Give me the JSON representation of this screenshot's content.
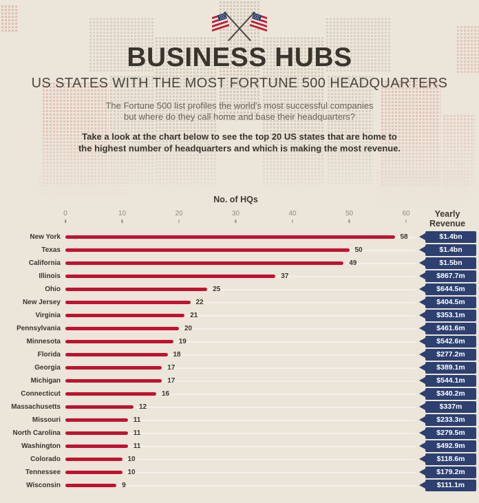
{
  "header": {
    "title": "BUSINESS HUBS",
    "subtitle": "US STATES WITH THE MOST FORTUNE 500 HEADQUARTERS",
    "description": "The Fortune 500 list profiles the world's most successful companies\nbut where do they call home and base their headquarters?",
    "cta": "Take a look at the chart below to see the top 20 US states that are home to\nthe highest number of headquarters and which is making the most revenue.",
    "flags_icon": "crossed-us-flags-icon"
  },
  "chart_data": {
    "type": "bar",
    "orientation": "horizontal",
    "title": "",
    "xlabel": "No. of HQs",
    "ylabel": "",
    "xlim": [
      0,
      60
    ],
    "x_ticks": [
      "0",
      "10",
      "20",
      "30",
      "40",
      "50",
      "60"
    ],
    "grid": false,
    "legend": false,
    "secondary_column_label": "Yearly Revenue",
    "categories": [
      "New York",
      "Texas",
      "California",
      "Illinois",
      "Ohio",
      "New Jersey",
      "Virginia",
      "Pennsylvania",
      "Minnesota",
      "Florida",
      "Georgia",
      "Michigan",
      "Connecticut",
      "Massachusetts",
      "Missouri",
      "North Carolina",
      "Washington",
      "Colorado",
      "Tennessee",
      "Wisconsin"
    ],
    "series": [
      {
        "name": "No. of HQs",
        "values": [
          58,
          50,
          49,
          37,
          25,
          22,
          21,
          20,
          19,
          18,
          17,
          17,
          16,
          12,
          11,
          11,
          11,
          10,
          10,
          9
        ]
      },
      {
        "name": "Yearly Revenue",
        "values": [
          "$1.4bn",
          "$1.4bn",
          "$1.5bn",
          "$867.7m",
          "$644.5m",
          "$404.5m",
          "$353.1m",
          "$461.6m",
          "$542.6m",
          "$277.2m",
          "$389.1m",
          "$544.1m",
          "$340.2m",
          "$337m",
          "$233.3m",
          "$279.5m",
          "$492.9m",
          "$118.6m",
          "$179.2m",
          "$111.1m"
        ]
      }
    ]
  },
  "colors": {
    "background": "#ece5d9",
    "bar_red": "#c0122f",
    "badge_navy": "#2d4070",
    "badge_text": "#ffffff",
    "heading_text": "#38342e",
    "subtitle_text": "#4b463e",
    "body_text": "#6c6357",
    "axis_text": "#948b7c",
    "flag_red": "#bd2036",
    "flag_blue": "#2d3c6d"
  }
}
